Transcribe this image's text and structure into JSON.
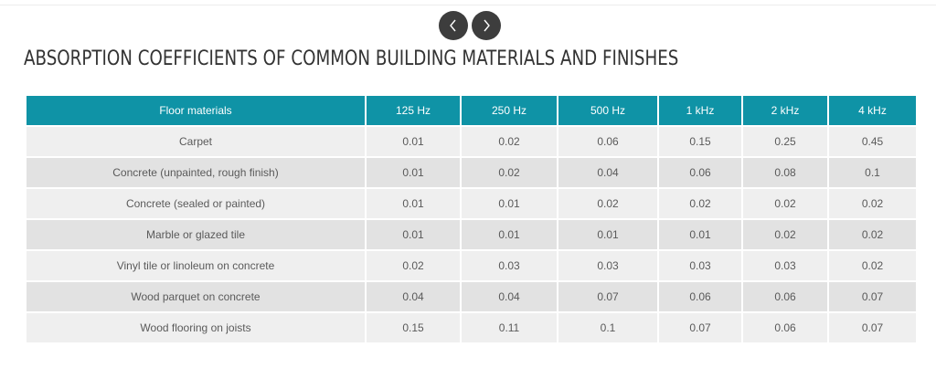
{
  "navigation": {
    "prev_icon": "chevron-left-icon",
    "next_icon": "chevron-right-icon",
    "button_color": "#3d3d3d"
  },
  "title": "ABSORPTION COEFFICIENTS OF COMMON BUILDING MATERIALS AND FINISHES",
  "table": {
    "header_color": "#0f93a6",
    "headers": [
      "Floor materials",
      "125 Hz",
      "250 Hz",
      "500 Hz",
      "1 kHz",
      "2 kHz",
      "4 kHz"
    ],
    "rows": [
      [
        "Carpet",
        "0.01",
        "0.02",
        "0.06",
        "0.15",
        "0.25",
        "0.45"
      ],
      [
        "Concrete (unpainted, rough finish)",
        "0.01",
        "0.02",
        "0.04",
        "0.06",
        "0.08",
        "0.1"
      ],
      [
        "Concrete (sealed or painted)",
        "0.01",
        "0.01",
        "0.02",
        "0.02",
        "0.02",
        "0.02"
      ],
      [
        "Marble or glazed tile",
        "0.01",
        "0.01",
        "0.01",
        "0.01",
        "0.02",
        "0.02"
      ],
      [
        "Vinyl tile or linoleum on concrete",
        "0.02",
        "0.03",
        "0.03",
        "0.03",
        "0.03",
        "0.02"
      ],
      [
        "Wood parquet on concrete",
        "0.04",
        "0.04",
        "0.07",
        "0.06",
        "0.06",
        "0.07"
      ],
      [
        "Wood flooring on joists",
        "0.15",
        "0.11",
        "0.1",
        "0.07",
        "0.06",
        "0.07"
      ]
    ]
  }
}
